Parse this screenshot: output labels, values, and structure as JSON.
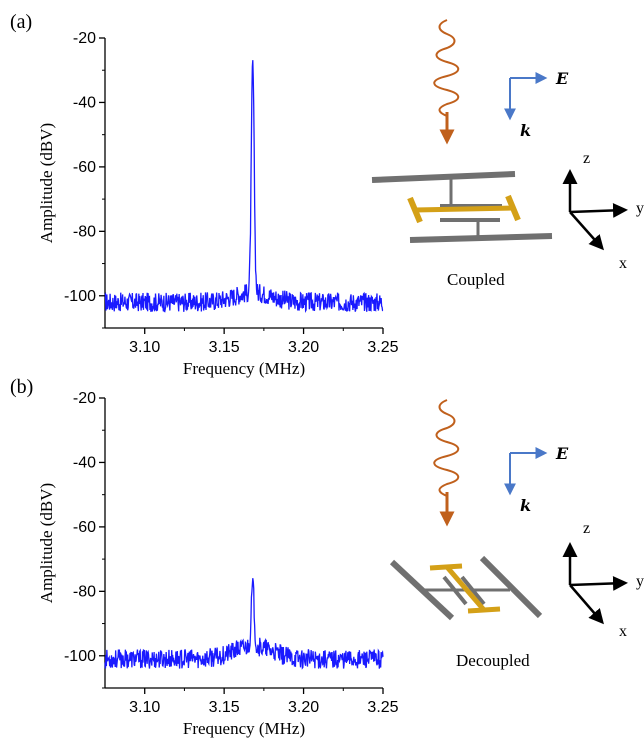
{
  "colors": {
    "spectrum": "#1a1aff",
    "wave": "#c0601c",
    "vector": "#4a78c8",
    "resonator_gold": "#d4a017",
    "resonator_gray": "#707070"
  },
  "chart_data": [
    {
      "type": "line",
      "panel_label": "(a)",
      "xlabel": "Frequency (MHz)",
      "ylabel": "Amplitude (dBV)",
      "xlim": [
        3.075,
        3.25
      ],
      "ylim": [
        -110,
        -20
      ],
      "x_ticks": [
        "3.10",
        "3.15",
        "3.20",
        "3.25"
      ],
      "y_ticks": [
        "-20",
        "-40",
        "-60",
        "-80",
        "-100"
      ],
      "grid": false,
      "series": [
        {
          "baseline": -102,
          "peak_x": 3.168,
          "peak_y": -31,
          "bump": 3
        }
      ],
      "caption": "Coupled",
      "vectors": {
        "E": "E",
        "k": "k"
      },
      "axes3d": {
        "z": "z",
        "y": "y",
        "x": "x"
      }
    },
    {
      "type": "line",
      "panel_label": "(b)",
      "xlabel": "Frequency (MHz)",
      "ylabel": "Amplitude (dBV)",
      "xlim": [
        3.075,
        3.25
      ],
      "ylim": [
        -110,
        -20
      ],
      "x_ticks": [
        "3.10",
        "3.15",
        "3.20",
        "3.25"
      ],
      "y_ticks": [
        "-20",
        "-40",
        "-60",
        "-80",
        "-100"
      ],
      "grid": false,
      "series": [
        {
          "baseline": -101,
          "peak_x": 3.168,
          "peak_y": -82,
          "bump": 4
        }
      ],
      "caption": "Decoupled",
      "vectors": {
        "E": "E",
        "k": "k"
      },
      "axes3d": {
        "z": "z",
        "y": "y",
        "x": "x"
      }
    }
  ]
}
